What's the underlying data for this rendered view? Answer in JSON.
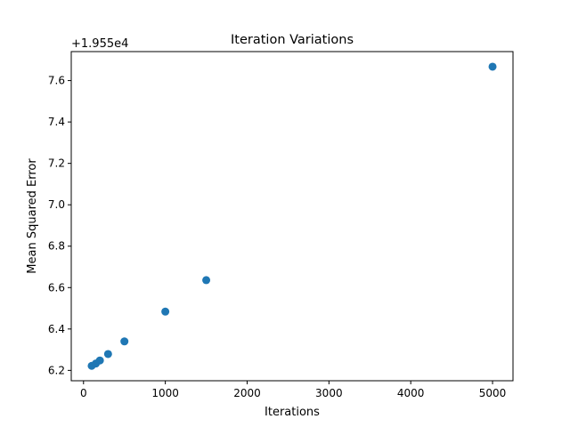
{
  "chart_data": {
    "type": "scatter",
    "title": "Iteration Variations",
    "xlabel": "Iterations",
    "ylabel": "Mean Squared Error",
    "offset_label": "+1.955e4",
    "series": [
      {
        "x": [
          100,
          150,
          200,
          300,
          500,
          1000,
          1500,
          5000
        ],
        "y": [
          6.222,
          6.233,
          6.248,
          6.279,
          6.34,
          6.484,
          6.636,
          7.667
        ]
      }
    ],
    "xlim": [
      -150,
      5250
    ],
    "ylim": [
      6.15,
      7.74
    ],
    "xticks": [
      0,
      1000,
      2000,
      3000,
      4000,
      5000
    ],
    "xtick_labels": [
      "0",
      "1000",
      "2000",
      "3000",
      "4000",
      "5000"
    ],
    "yticks": [
      6.2,
      6.4,
      6.6,
      6.8,
      7.0,
      7.2,
      7.4,
      7.6
    ],
    "ytick_labels": [
      "6.2",
      "6.4",
      "6.6",
      "6.8",
      "7.0",
      "7.2",
      "7.4",
      "7.6"
    ],
    "grid": false,
    "marker_color": "#1f77b4"
  }
}
